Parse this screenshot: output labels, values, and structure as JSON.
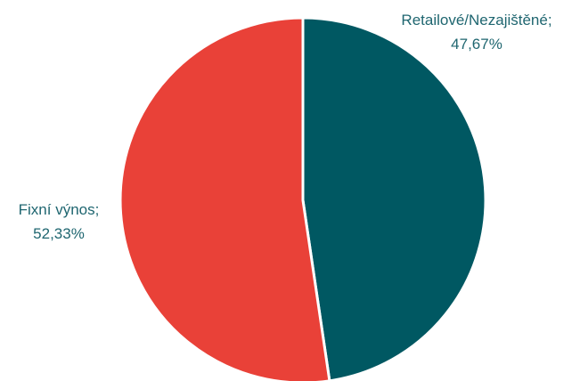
{
  "chart_data": {
    "type": "pie",
    "slices": [
      {
        "label": "Retailové/Nezajištěné",
        "value": 47.67,
        "value_text": "47,67%",
        "label_line1": "Retailové/Nezajištěné;",
        "label_line2": "47,67%",
        "color": "#005862"
      },
      {
        "label": "Fixní výnos",
        "value": 52.33,
        "value_text": "52,33%",
        "label_line1": "Fixní výnos;",
        "label_line2": "52,33%",
        "color": "#E94138"
      }
    ],
    "label_color": "#1F6670",
    "start_angle_deg": 0,
    "direction": "clockwise"
  }
}
